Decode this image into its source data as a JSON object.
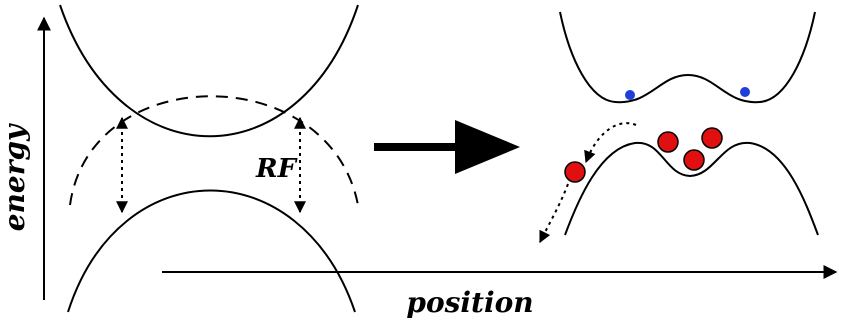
{
  "labels": {
    "y_axis": "energy",
    "x_axis": "position",
    "rf": "RF"
  },
  "colors": {
    "line": "#000000",
    "trapped_atom": "#1f3fd9",
    "escaping_atom": "#e01010"
  }
}
